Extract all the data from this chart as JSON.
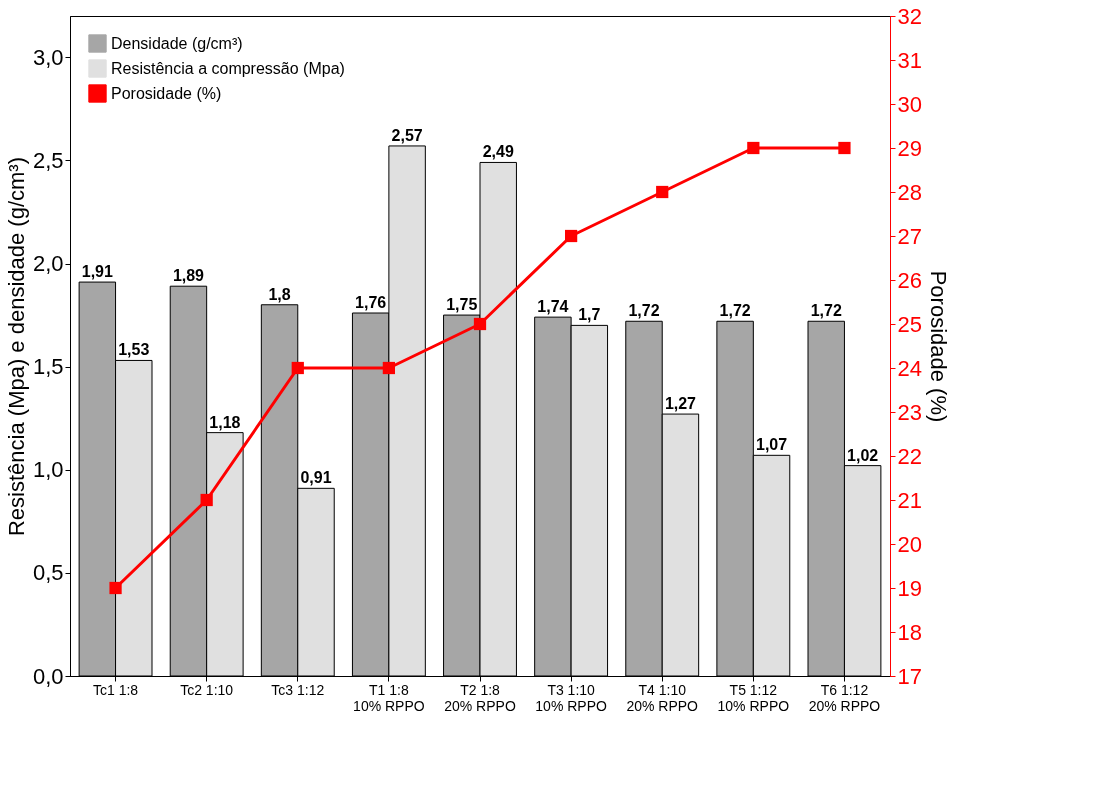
{
  "chart_data": {
    "type": "bar",
    "ylabel": "Resistência (Mpa) e densidade (g/cm³)",
    "y2label": "Porosidade (%)",
    "categories": [
      "Tc1 1:8",
      "Tc2 1:10",
      "Tc3 1:12",
      "T1 1:8\n10% RPPO",
      "T2 1:8\n20% RPPO",
      "T3 1:10\n10% RPPO",
      "T4 1:10\n20% RPPO",
      "T5 1:12\n10% RPPO",
      "T6 1:12\n20% RPPO"
    ],
    "series": [
      {
        "name": "Densidade (g/cm³)",
        "color": "#a6a6a6",
        "values": [
          1.91,
          1.89,
          1.8,
          1.76,
          1.75,
          1.74,
          1.72,
          1.72,
          1.72
        ],
        "value_labels": [
          "1,91",
          "1,89",
          "1,8",
          "1,76",
          "1,75",
          "1,74",
          "1,72",
          "1,72",
          "1,72"
        ]
      },
      {
        "name": "Resistência a compressão (Mpa)",
        "color": "#e0e0e0",
        "values": [
          1.53,
          1.18,
          0.91,
          2.57,
          2.49,
          1.7,
          1.27,
          1.07,
          1.02
        ],
        "value_labels": [
          "1,53",
          "1,18",
          "0,91",
          "2,57",
          "2,49",
          "1,7",
          "1,27",
          "1,07",
          "1,02"
        ]
      },
      {
        "name": "Porosidade (%)",
        "type": "line",
        "axis": "y2",
        "color": "#ff0000",
        "values": [
          19,
          21,
          24,
          24,
          25,
          27,
          28,
          29,
          29
        ]
      }
    ],
    "ylim": [
      0,
      3.2
    ],
    "yticks": [
      {
        "value": 0,
        "label": "0,0"
      },
      {
        "value": 0.5,
        "label": "0,5"
      },
      {
        "value": 1,
        "label": "1,0"
      },
      {
        "value": 1.5,
        "label": "1,5"
      },
      {
        "value": 2,
        "label": "2,0"
      },
      {
        "value": 2.5,
        "label": "2,5"
      },
      {
        "value": 3,
        "label": "3,0"
      }
    ],
    "y2lim": [
      17,
      32
    ],
    "y2ticks": [
      17,
      18,
      19,
      20,
      21,
      22,
      23,
      24,
      25,
      26,
      27,
      28,
      29,
      30,
      31,
      32
    ],
    "legend": "top left",
    "grid": false,
    "marker": "square",
    "line_style": "solid"
  }
}
